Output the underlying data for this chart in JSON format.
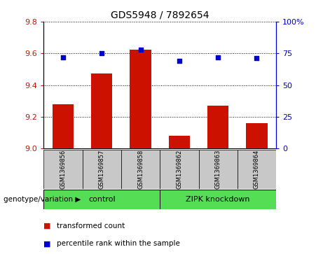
{
  "title": "GDS5948 / 7892654",
  "samples": [
    "GSM1369856",
    "GSM1369857",
    "GSM1369858",
    "GSM1369862",
    "GSM1369863",
    "GSM1369864"
  ],
  "bar_values": [
    9.28,
    9.475,
    9.625,
    9.08,
    9.27,
    9.16
  ],
  "percentile_values": [
    72,
    75,
    78,
    69,
    72,
    71
  ],
  "bar_color": "#cc1100",
  "dot_color": "#0000cc",
  "ylim_left": [
    9.0,
    9.8
  ],
  "ylim_right": [
    0,
    100
  ],
  "yticks_left": [
    9.0,
    9.2,
    9.4,
    9.6,
    9.8
  ],
  "yticks_right": [
    0,
    25,
    50,
    75,
    100
  ],
  "ytick_labels_right": [
    "0",
    "25",
    "50",
    "75",
    "100%"
  ],
  "group1_label": "control",
  "group2_label": "ZIPK knockdown",
  "group1_indices": [
    0,
    1,
    2
  ],
  "group2_indices": [
    3,
    4,
    5
  ],
  "group_bg_color": "#55dd55",
  "sample_bg_color": "#c8c8c8",
  "genotype_label": "genotype/variation",
  "legend_bar_label": "transformed count",
  "legend_dot_label": "percentile rank within the sample",
  "bar_width": 0.55
}
